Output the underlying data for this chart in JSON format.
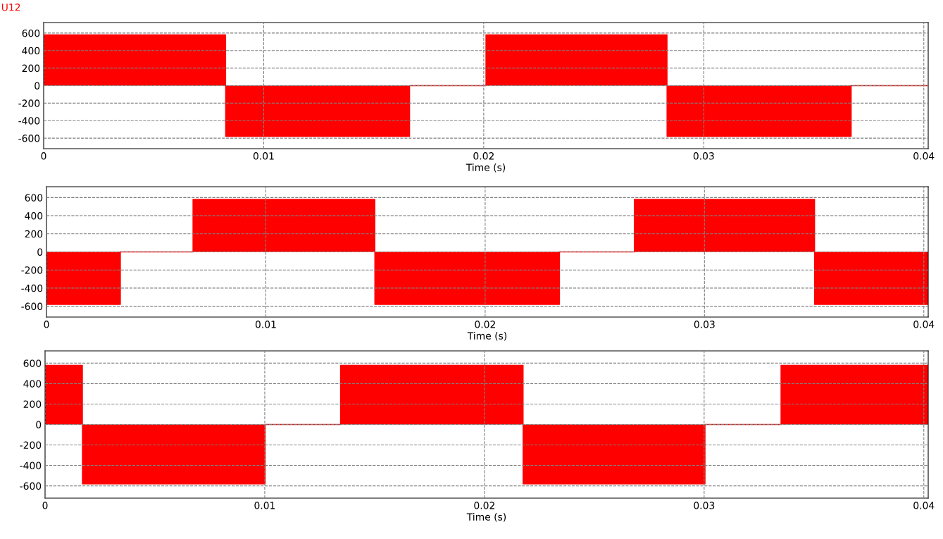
{
  "chart_data": [
    {
      "type": "area",
      "title": "U12",
      "xlabel": "Time (s)",
      "grid": true,
      "line_style": "dashed",
      "xlim": [
        0,
        0.0402
      ],
      "xticks": [
        0,
        0.01,
        0.02,
        0.03,
        0.04
      ],
      "ylim": [
        -720,
        720
      ],
      "yticks": [
        -600,
        -400,
        -200,
        0,
        200,
        400,
        600
      ],
      "series": [
        {
          "color": "#ff0000",
          "x": [
            0,
            0.00827,
            0.01663,
            0.0201,
            0.02833,
            0.0367,
            0.0402
          ],
          "values": [
            580,
            -580,
            0,
            580,
            -580,
            0,
            0
          ]
        }
      ]
    },
    {
      "type": "area",
      "xlabel": "Time (s)",
      "grid": true,
      "line_style": "dashed",
      "xlim": [
        0,
        0.0402
      ],
      "xticks": [
        0,
        0.01,
        0.02,
        0.03,
        0.04
      ],
      "ylim": [
        -720,
        720
      ],
      "yticks": [
        -600,
        -400,
        -200,
        0,
        200,
        400,
        600
      ],
      "series": [
        {
          "color": "#ff0000",
          "x": [
            0,
            0.00337,
            0.00668,
            0.01497,
            0.02339,
            0.0268,
            0.03502,
            0.0402
          ],
          "values": [
            -580,
            0,
            580,
            -580,
            0,
            580,
            -580,
            -580
          ]
        }
      ]
    },
    {
      "type": "area",
      "xlabel": "Time (s)",
      "grid": true,
      "line_style": "dashed",
      "xlim": [
        0,
        0.0402
      ],
      "xticks": [
        0,
        0.01,
        0.02,
        0.03,
        0.04
      ],
      "ylim": [
        -720,
        720
      ],
      "yticks": [
        -600,
        -400,
        -200,
        0,
        200,
        400,
        600
      ],
      "series": [
        {
          "color": "#ff0000",
          "x": [
            0,
            0.0017,
            0.01002,
            0.01345,
            0.02176,
            0.03004,
            0.0335,
            0.0402
          ],
          "values": [
            580,
            -580,
            0,
            580,
            -580,
            0,
            580,
            580
          ]
        }
      ]
    }
  ]
}
